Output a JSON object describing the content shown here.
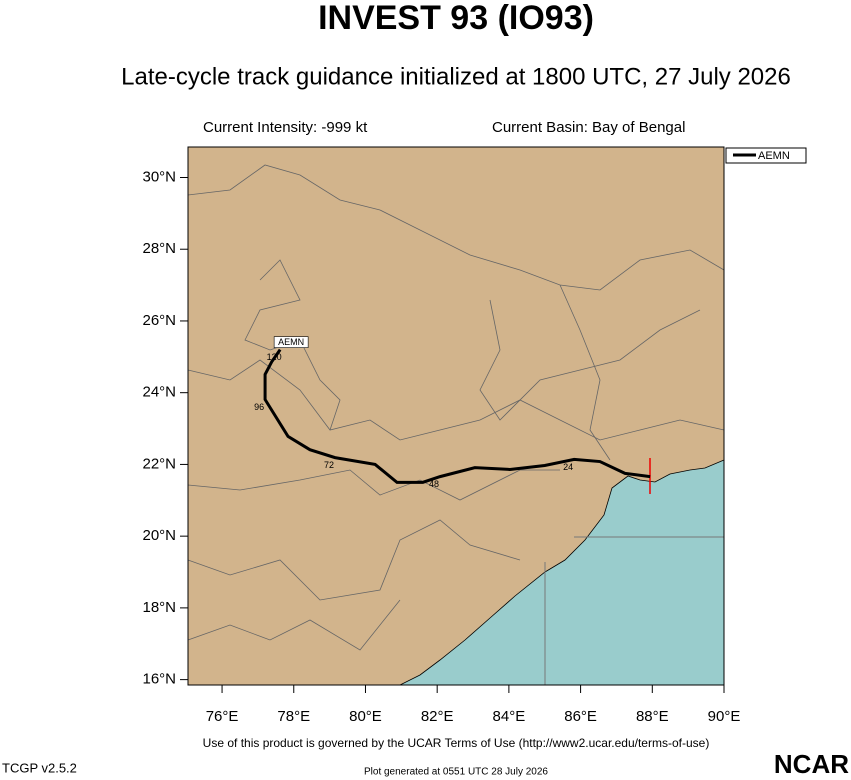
{
  "header": {
    "title": "INVEST 93 (IO93)",
    "subtitle": "Late-cycle track guidance initialized at 1800 UTC, 27 July 2026",
    "intensity": "Current Intensity: -999 kt",
    "basin": "Current Basin: Bay of Bengal"
  },
  "map": {
    "xlim": [
      75.05,
      90
    ],
    "ylim": [
      15.85,
      30.85
    ],
    "xticks": [
      {
        "value": 76,
        "label": "76°E"
      },
      {
        "value": 78,
        "label": "78°E"
      },
      {
        "value": 80,
        "label": "80°E"
      },
      {
        "value": 82,
        "label": "82°E"
      },
      {
        "value": 84,
        "label": "84°E"
      },
      {
        "value": 86,
        "label": "86°E"
      },
      {
        "value": 88,
        "label": "88°E"
      },
      {
        "value": 90,
        "label": "90°E"
      }
    ],
    "yticks": [
      {
        "value": 16,
        "label": "16°N"
      },
      {
        "value": 18,
        "label": "18°N"
      },
      {
        "value": 20,
        "label": "20°N"
      },
      {
        "value": 22,
        "label": "22°N"
      },
      {
        "value": 24,
        "label": "24°N"
      },
      {
        "value": 26,
        "label": "26°N"
      },
      {
        "value": 28,
        "label": "28°N"
      },
      {
        "value": 30,
        "label": "30°N"
      }
    ],
    "legend": "AEMN",
    "track": {
      "name": "AEMN",
      "color": "#000000",
      "points": [
        {
          "lon": 87.94,
          "lat": 21.66
        },
        {
          "lon": 87.24,
          "lat": 21.75
        },
        {
          "lon": 86.54,
          "lat": 22.08
        },
        {
          "lon": 85.82,
          "lat": 22.14,
          "label": "24"
        },
        {
          "lon": 85.0,
          "lat": 21.97
        },
        {
          "lon": 84.03,
          "lat": 21.86
        },
        {
          "lon": 83.05,
          "lat": 21.91
        },
        {
          "lon": 82.08,
          "lat": 21.66,
          "label": "48"
        },
        {
          "lon": 81.6,
          "lat": 21.5
        },
        {
          "lon": 80.88,
          "lat": 21.5
        },
        {
          "lon": 80.27,
          "lat": 22.0
        },
        {
          "lon": 79.15,
          "lat": 22.19,
          "label": "72"
        },
        {
          "lon": 78.45,
          "lat": 22.41
        },
        {
          "lon": 77.84,
          "lat": 22.78
        },
        {
          "lon": 77.2,
          "lat": 23.81,
          "label": "96"
        },
        {
          "lon": 77.2,
          "lat": 24.51
        },
        {
          "lon": 77.39,
          "lat": 24.87
        },
        {
          "lon": 77.62,
          "lat": 25.2,
          "label": "120"
        }
      ]
    }
  },
  "footer": {
    "terms": "Use of this product is governed by the UCAR Terms of Use (http://www2.ucar.edu/terms-of-use)",
    "version": "TCGP v2.5.2",
    "generated": "Plot generated at 0551 UTC   28 July 2026",
    "logo": "NCAR"
  }
}
